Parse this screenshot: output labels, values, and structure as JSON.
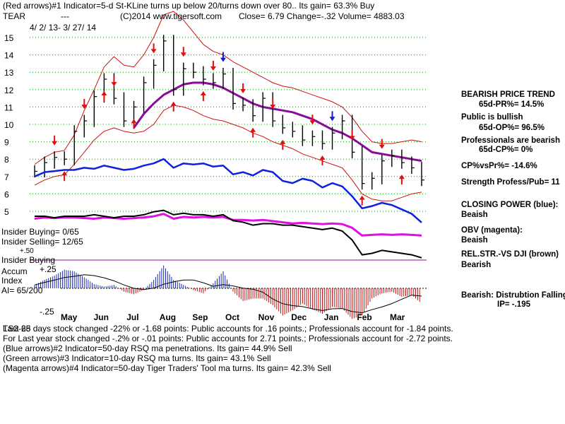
{
  "header": {
    "line1": "(Red arrows)#1 Indicator=5-d St-KLine turns up below 20/turns down over 80.. Its gain= 63.3% Buy",
    "ticker": "TEAR",
    "dashes": "---",
    "site": "(C)2014 www.tigersoft.com",
    "close_text": "Close=  6.79  Change=-.32 Volume= 4883.03",
    "date_range": "4/ 2/ 13- 3/ 27/ 14"
  },
  "right_panel": {
    "trend_title": "BEARISH PRICE TREND",
    "pr": "65d-PR%= 14.5%",
    "public": "Public is bullish",
    "op": "65d-OP%= 96.5%",
    "prof": "Professionals are bearish",
    "cp": "65d-CP%= 0%",
    "cpvspr": "CP%vsPr%= -14.6%",
    "strength": "Strength Profess/Pub= 11",
    "cp_label": "CLOSING POWER (blue):",
    "cp_val": "Beaish",
    "obv_label": "OBV (magenta):",
    "obv_val": "Beaish",
    "rel_label": "REL.STR.-VS DJI (brown)",
    "rel_val": "Bearish",
    "dist_label": "Bearish: Distrubtion Falling",
    "ip": "IP= -.195"
  },
  "left_panel": {
    "ins_buy": "Insider Buying= 0/65",
    "ins_sell": "Insider Selling= 12/65",
    "ins_buy2": "Insider Buying",
    "accum": "Accum",
    "index": "Index",
    "ai": "AI= 65/200",
    "plus25": "+.25",
    "minus25": "-.25",
    "plus50": "+.50"
  },
  "footer": {
    "l1": "Last 65 days stock changed -22% or -1.68 points:  Public accounts for  .16 points.;  Professionals account for -1.84 points.",
    "l1_overlay": "TS3-28",
    "l2": "For Last year stock changed -.2% or -.01 points:  Public accounts for  2.71 points.;  Professionals account for -2.72 points.",
    "l3": "(Blue arrows)#2 Indicator=50-day RSQ ma penetrations. Its gain= 44.9% Sell",
    "l4": "(Green arrows)#3 Indicator=10-day RSQ ma turns. Its gain= 43.1% Sell",
    "l5": "(Magenta arrows)#4 Indicator=50-day Tiger Traders' Tool ma turns. Its gain= 42.3% Sell"
  },
  "chart_data": {
    "type": "line",
    "price_axis": {
      "ylim": [
        5,
        15
      ],
      "ticks": [
        "15",
        "14",
        "13",
        "12",
        "11",
        "10",
        "9",
        "8",
        "7",
        "6",
        "5"
      ]
    },
    "months": [
      "May",
      "Jun",
      "Jul",
      "Aug",
      "Sep",
      "Oct",
      "Nov",
      "Dec",
      "Jan",
      "Feb",
      "Mar"
    ],
    "price_close": [
      7.3,
      7.8,
      8.1,
      8.0,
      9.6,
      10.2,
      11.6,
      12.6,
      11.5,
      10.2,
      11.0,
      12.4,
      13.4,
      14.8,
      12.0,
      13.2,
      13.0,
      12.6,
      12.4,
      12.9,
      11.2,
      11.1,
      10.5,
      11.5,
      10.2,
      9.8,
      9.6,
      9.1,
      9.3,
      8.9,
      9.5,
      10.2,
      8.4,
      6.6,
      6.9,
      7.9,
      8.2,
      7.8,
      7.5,
      6.8
    ],
    "ma50": [
      null,
      null,
      null,
      null,
      null,
      null,
      null,
      null,
      null,
      null,
      9.8,
      10.6,
      11.2,
      11.7,
      12.0,
      12.3,
      12.4,
      12.4,
      12.3,
      12.1,
      11.8,
      11.5,
      11.2,
      11.0,
      10.9,
      10.8,
      10.7,
      10.5,
      10.3,
      10.0,
      9.7,
      9.5,
      9.2,
      8.8,
      8.4,
      8.3,
      8.2,
      8.1,
      8.0,
      7.9
    ],
    "upper_band": [
      7.7,
      8.1,
      8.4,
      8.5,
      9.4,
      10.8,
      12.0,
      13.3,
      13.9,
      13.4,
      13.3,
      14.0,
      15.0,
      16.3,
      16.5,
      16.0,
      15.3,
      14.6,
      14.2,
      14.0,
      13.6,
      13.3,
      13.0,
      12.7,
      12.4,
      12.2,
      12.1,
      11.9,
      11.7,
      11.5,
      11.3,
      11.0,
      10.4,
      9.6,
      9.0,
      8.9,
      8.9,
      9.0,
      9.1,
      9.0
    ],
    "lower_band": [
      6.5,
      6.8,
      7.0,
      7.1,
      7.7,
      8.4,
      9.1,
      9.6,
      9.8,
      9.6,
      9.5,
      9.6,
      10.0,
      10.8,
      11.1,
      11.0,
      10.8,
      10.5,
      10.3,
      10.2,
      10.0,
      9.8,
      9.5,
      9.3,
      9.0,
      8.8,
      8.6,
      8.3,
      8.1,
      7.9,
      7.7,
      7.5,
      6.8,
      6.0,
      5.7,
      5.6,
      5.6,
      5.8,
      6.0,
      6.1
    ],
    "closing_power": [
      54,
      58,
      59,
      60,
      60,
      62,
      61,
      64,
      62,
      60,
      61,
      64,
      66,
      70,
      62,
      66,
      65,
      66,
      63,
      64,
      56,
      58,
      55,
      60,
      58,
      50,
      48,
      52,
      50,
      44,
      48,
      45,
      36,
      25,
      27,
      30,
      28,
      24,
      20,
      12
    ],
    "obv": [
      60,
      62,
      61,
      62,
      62,
      61,
      60,
      62,
      61,
      60,
      61,
      62,
      64,
      68,
      60,
      63,
      62,
      63,
      62,
      63,
      58,
      58,
      57,
      58,
      56,
      54,
      52,
      53,
      52,
      51,
      52,
      51,
      45,
      32,
      33,
      34,
      33,
      34,
      33,
      32
    ],
    "rel_strength": [
      30,
      30,
      29,
      30,
      30,
      30,
      31,
      30,
      29,
      30,
      30,
      31,
      33,
      34,
      31,
      32,
      31,
      31,
      30,
      31,
      27,
      26,
      24,
      25,
      25,
      24,
      24,
      23,
      22,
      21,
      22,
      20,
      14,
      4,
      5,
      7,
      6,
      5,
      4,
      2
    ],
    "accum_index": [
      0.04,
      0.1,
      0.15,
      0.22,
      0.2,
      0.13,
      0.05,
      0.02,
      0.04,
      -0.04,
      -0.07,
      -0.02,
      0.1,
      0.27,
      0.1,
      0.04,
      -0.02,
      -0.06,
      0.06,
      0.2,
      -0.04,
      -0.15,
      -0.12,
      -0.12,
      -0.2,
      -0.32,
      -0.26,
      -0.18,
      -0.25,
      -0.3,
      -0.22,
      -0.24,
      -0.36,
      -0.32,
      -0.12,
      -0.06,
      -0.04,
      -0.1,
      -0.08,
      -0.18
    ],
    "red_up_arrows": [
      3,
      7,
      10,
      14,
      17,
      22,
      25,
      29,
      33,
      37
    ],
    "red_down_arrows": [
      2,
      5,
      8,
      12,
      15,
      18,
      21,
      24,
      28,
      32,
      35
    ],
    "blue_down_arrows": [
      19,
      30
    ]
  }
}
